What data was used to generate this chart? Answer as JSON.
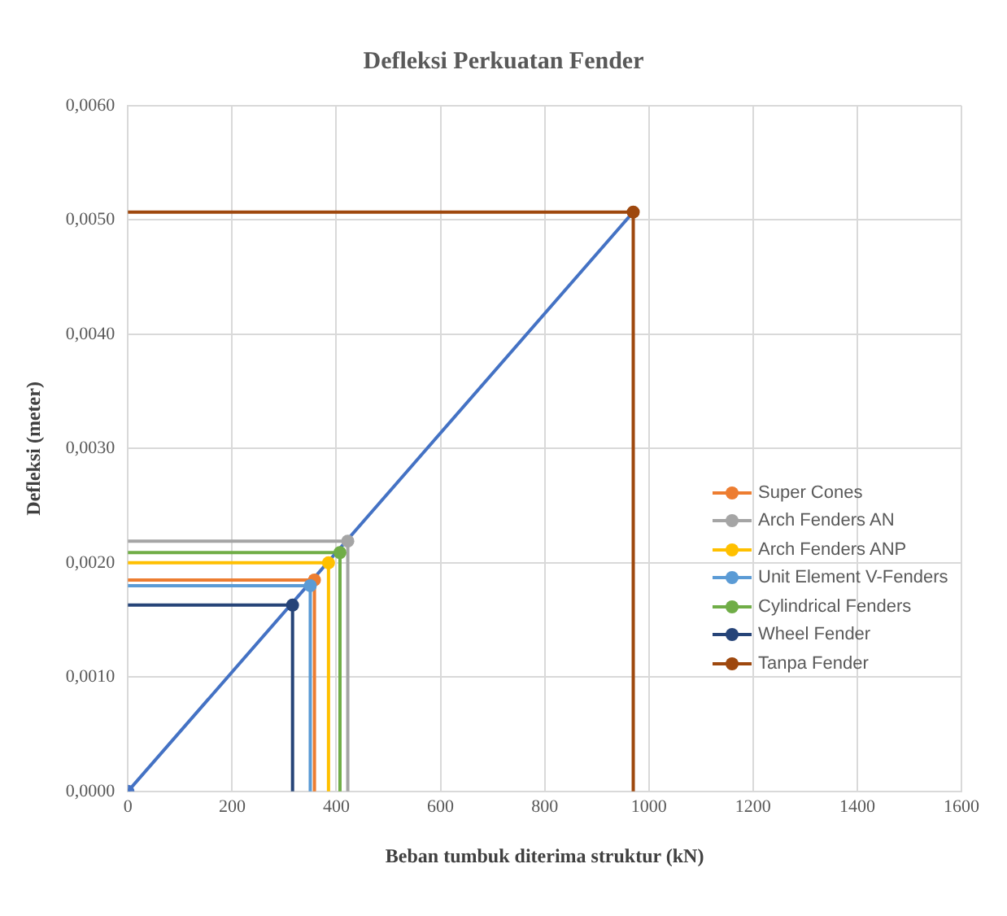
{
  "chart_data": {
    "type": "line",
    "title": "Defleksi Perkuatan Fender",
    "xlabel": "Beban tumbuk diterima struktur (kN)",
    "ylabel": "Defleksi (meter)",
    "xlim": [
      0,
      1600
    ],
    "xticks": [
      0,
      200,
      400,
      600,
      800,
      1000,
      1200,
      1400,
      1600
    ],
    "ylim": [
      0,
      0.006
    ],
    "yticks": [
      {
        "value": 0,
        "label": "0,0000"
      },
      {
        "value": 0.001,
        "label": "0,0010"
      },
      {
        "value": 0.002,
        "label": "0,0020"
      },
      {
        "value": 0.003,
        "label": "0,0030"
      },
      {
        "value": 0.004,
        "label": "0,0040"
      },
      {
        "value": 0.005,
        "label": "0,0050"
      },
      {
        "value": 0.006,
        "label": "0,0060"
      }
    ],
    "grid": true,
    "legend": "right",
    "marker": "circle",
    "line_style": "solid",
    "series": [
      {
        "color": "#4472c4",
        "marker": "none",
        "x": [
          0,
          970
        ],
        "values": [
          0,
          0.00507
        ]
      },
      {
        "name": "Super Cones",
        "color": "#ed7d31",
        "marker": "none",
        "x": [
          0,
          358,
          358
        ],
        "values": [
          0.00185,
          0.00185,
          0
        ]
      },
      {
        "name": "Arch Fenders AN",
        "color": "#a5a5a5",
        "marker": "none",
        "x": [
          0,
          422,
          422
        ],
        "values": [
          0.00219,
          0.00219,
          0
        ]
      },
      {
        "name": "Arch Fenders ANP",
        "color": "#ffc000",
        "marker": "none",
        "x": [
          0,
          385,
          385
        ],
        "values": [
          0.002,
          0.002,
          0
        ]
      },
      {
        "name": "Unit Element V-Fenders",
        "color": "#5b9bd5",
        "marker": "none",
        "x": [
          0,
          350,
          350
        ],
        "values": [
          0.0018,
          0.0018,
          0
        ]
      },
      {
        "name": "Cylindrical Fenders",
        "color": "#70ad47",
        "marker": "none",
        "x": [
          0,
          407,
          407
        ],
        "values": [
          0.00209,
          0.00209,
          0
        ]
      },
      {
        "name": "Wheel Fender",
        "color": "#264478",
        "marker": "none",
        "x": [
          0,
          316,
          316
        ],
        "values": [
          0.00163,
          0.00163,
          0
        ]
      },
      {
        "name": "Tanpa Fender",
        "color": "#9e480e",
        "marker": "none",
        "x": [
          0,
          970,
          970
        ],
        "values": [
          0.00507,
          0.00507,
          0
        ]
      },
      {
        "type": "scatter",
        "marker": "circle",
        "x": [
          0,
          358,
          422,
          385,
          350,
          407,
          316,
          970
        ],
        "values": [
          0,
          0.00185,
          0.00219,
          0.002,
          0.0018,
          0.00209,
          0.00163,
          0.00507
        ],
        "colors": [
          "#4472c4",
          "#ed7d31",
          "#a5a5a5",
          "#ffc000",
          "#5b9bd5",
          "#70ad47",
          "#264478",
          "#9e480e"
        ]
      }
    ]
  }
}
